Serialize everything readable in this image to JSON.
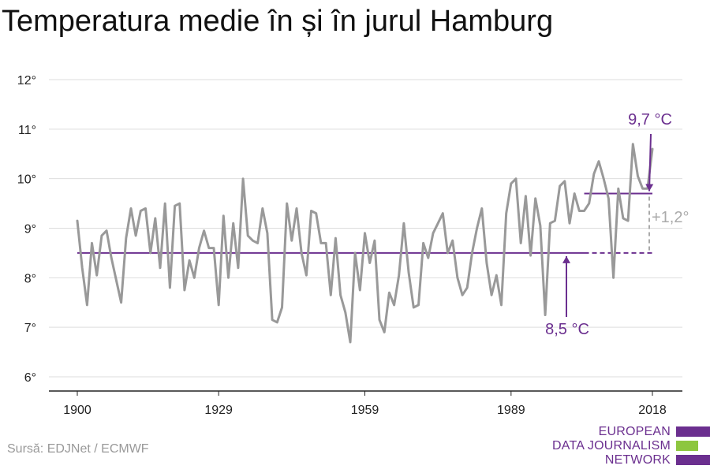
{
  "chart_data": {
    "type": "line",
    "title": "Temperatura medie în și în jurul Hamburg",
    "xlabel": "",
    "ylabel": "",
    "ylim": [
      6,
      12
    ],
    "xlim": [
      1900,
      2018
    ],
    "y_ticks": [
      "6°",
      "7°",
      "8°",
      "9°",
      "10°",
      "11°",
      "12°"
    ],
    "y_tick_values": [
      6,
      7,
      8,
      9,
      10,
      11,
      12
    ],
    "x_ticks": [
      "1900",
      "1929",
      "1959",
      "1989",
      "2018"
    ],
    "x_tick_values": [
      1900,
      1929,
      1959,
      1989,
      2018
    ],
    "grid": true,
    "series": [
      {
        "color": "#999999",
        "x": [
          1900,
          1901,
          1902,
          1903,
          1904,
          1905,
          1906,
          1907,
          1908,
          1909,
          1910,
          1911,
          1912,
          1913,
          1914,
          1915,
          1916,
          1917,
          1918,
          1919,
          1920,
          1921,
          1922,
          1923,
          1924,
          1925,
          1926,
          1927,
          1928,
          1929,
          1930,
          1931,
          1932,
          1933,
          1934,
          1935,
          1936,
          1937,
          1938,
          1939,
          1940,
          1941,
          1942,
          1943,
          1944,
          1945,
          1946,
          1947,
          1948,
          1949,
          1950,
          1951,
          1952,
          1953,
          1954,
          1955,
          1956,
          1957,
          1958,
          1959,
          1960,
          1961,
          1962,
          1963,
          1964,
          1965,
          1966,
          1967,
          1968,
          1969,
          1970,
          1971,
          1972,
          1973,
          1974,
          1975,
          1976,
          1977,
          1978,
          1979,
          1980,
          1981,
          1982,
          1983,
          1984,
          1985,
          1986,
          1987,
          1988,
          1989,
          1990,
          1991,
          1992,
          1993,
          1994,
          1995,
          1996,
          1997,
          1998,
          1999,
          2000,
          2001,
          2002,
          2003,
          2004,
          2005,
          2006,
          2007,
          2008,
          2009,
          2010,
          2011,
          2012,
          2013,
          2014,
          2015,
          2016,
          2017,
          2018
        ],
        "values": [
          9.15,
          8.2,
          7.45,
          8.7,
          8.05,
          8.85,
          8.95,
          8.4,
          7.95,
          7.5,
          8.8,
          9.4,
          8.85,
          9.35,
          9.4,
          8.5,
          9.2,
          8.2,
          9.5,
          7.8,
          9.45,
          9.5,
          7.75,
          8.35,
          8.0,
          8.6,
          8.95,
          8.6,
          8.6,
          7.45,
          9.25,
          8.0,
          9.1,
          8.2,
          10.0,
          8.85,
          8.75,
          8.7,
          9.4,
          8.9,
          7.15,
          7.1,
          7.4,
          9.5,
          8.75,
          9.4,
          8.5,
          8.05,
          9.35,
          9.3,
          8.7,
          8.7,
          7.65,
          8.8,
          7.65,
          7.3,
          6.7,
          8.5,
          7.75,
          8.9,
          8.3,
          8.75,
          7.15,
          6.9,
          7.7,
          7.45,
          8.05,
          9.1,
          8.1,
          7.4,
          7.45,
          8.7,
          8.4,
          8.9,
          9.1,
          9.3,
          8.5,
          8.75,
          8.0,
          7.65,
          7.8,
          8.5,
          9.0,
          9.4,
          8.3,
          7.65,
          8.05,
          7.45,
          9.3,
          9.9,
          10.0,
          8.7,
          9.65,
          8.45,
          9.6,
          9.05,
          7.25,
          9.1,
          9.15,
          9.85,
          9.95,
          9.1,
          9.7,
          9.35,
          9.35,
          9.5,
          10.1,
          10.35,
          10.0,
          9.6,
          8.0,
          9.8,
          9.2,
          9.15,
          10.7,
          10.05,
          9.8,
          9.8,
          10.6
        ]
      }
    ],
    "reference_lines": [
      {
        "label": "8,5 °C",
        "value": 8.5,
        "from": 1900,
        "to": 2018,
        "solid_until": 2004,
        "color": "#6b2f8f"
      },
      {
        "label": "9,7 °C",
        "value": 9.7,
        "from": 2004,
        "to": 2018,
        "color": "#6b2f8f"
      }
    ],
    "difference_annotation": {
      "label": "+1,2°",
      "at": 2018,
      "color": "#aaaaaa"
    }
  },
  "footer": {
    "source": "Sursă: EDJNet / ECMWF",
    "logo_lines": [
      "EUROPEAN",
      "DATA JOURNALISM",
      "NETWORK"
    ]
  },
  "colors": {
    "accent": "#6b2f8f",
    "line": "#999999",
    "logo_green": "#8dc63f"
  }
}
